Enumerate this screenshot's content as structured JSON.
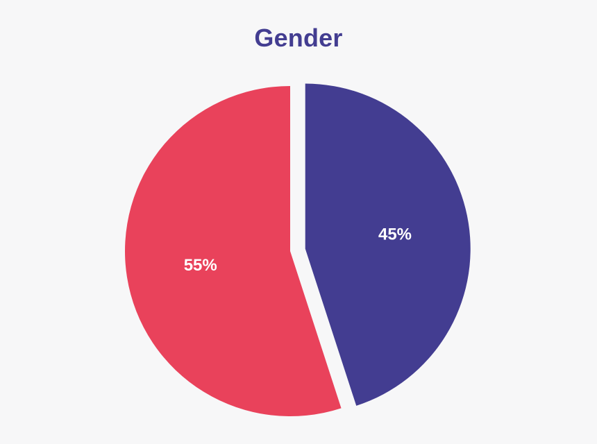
{
  "chart_data": {
    "type": "pie",
    "title": "Gender",
    "slices": [
      {
        "value": 45,
        "label": "45%",
        "color": "#433d91",
        "exploded": true
      },
      {
        "value": 55,
        "label": "55%",
        "color": "#e9425b",
        "exploded": false
      }
    ],
    "start_angle": "top",
    "direction": "clockwise",
    "title_color": "#433d91",
    "background": "#f7f7f8"
  }
}
